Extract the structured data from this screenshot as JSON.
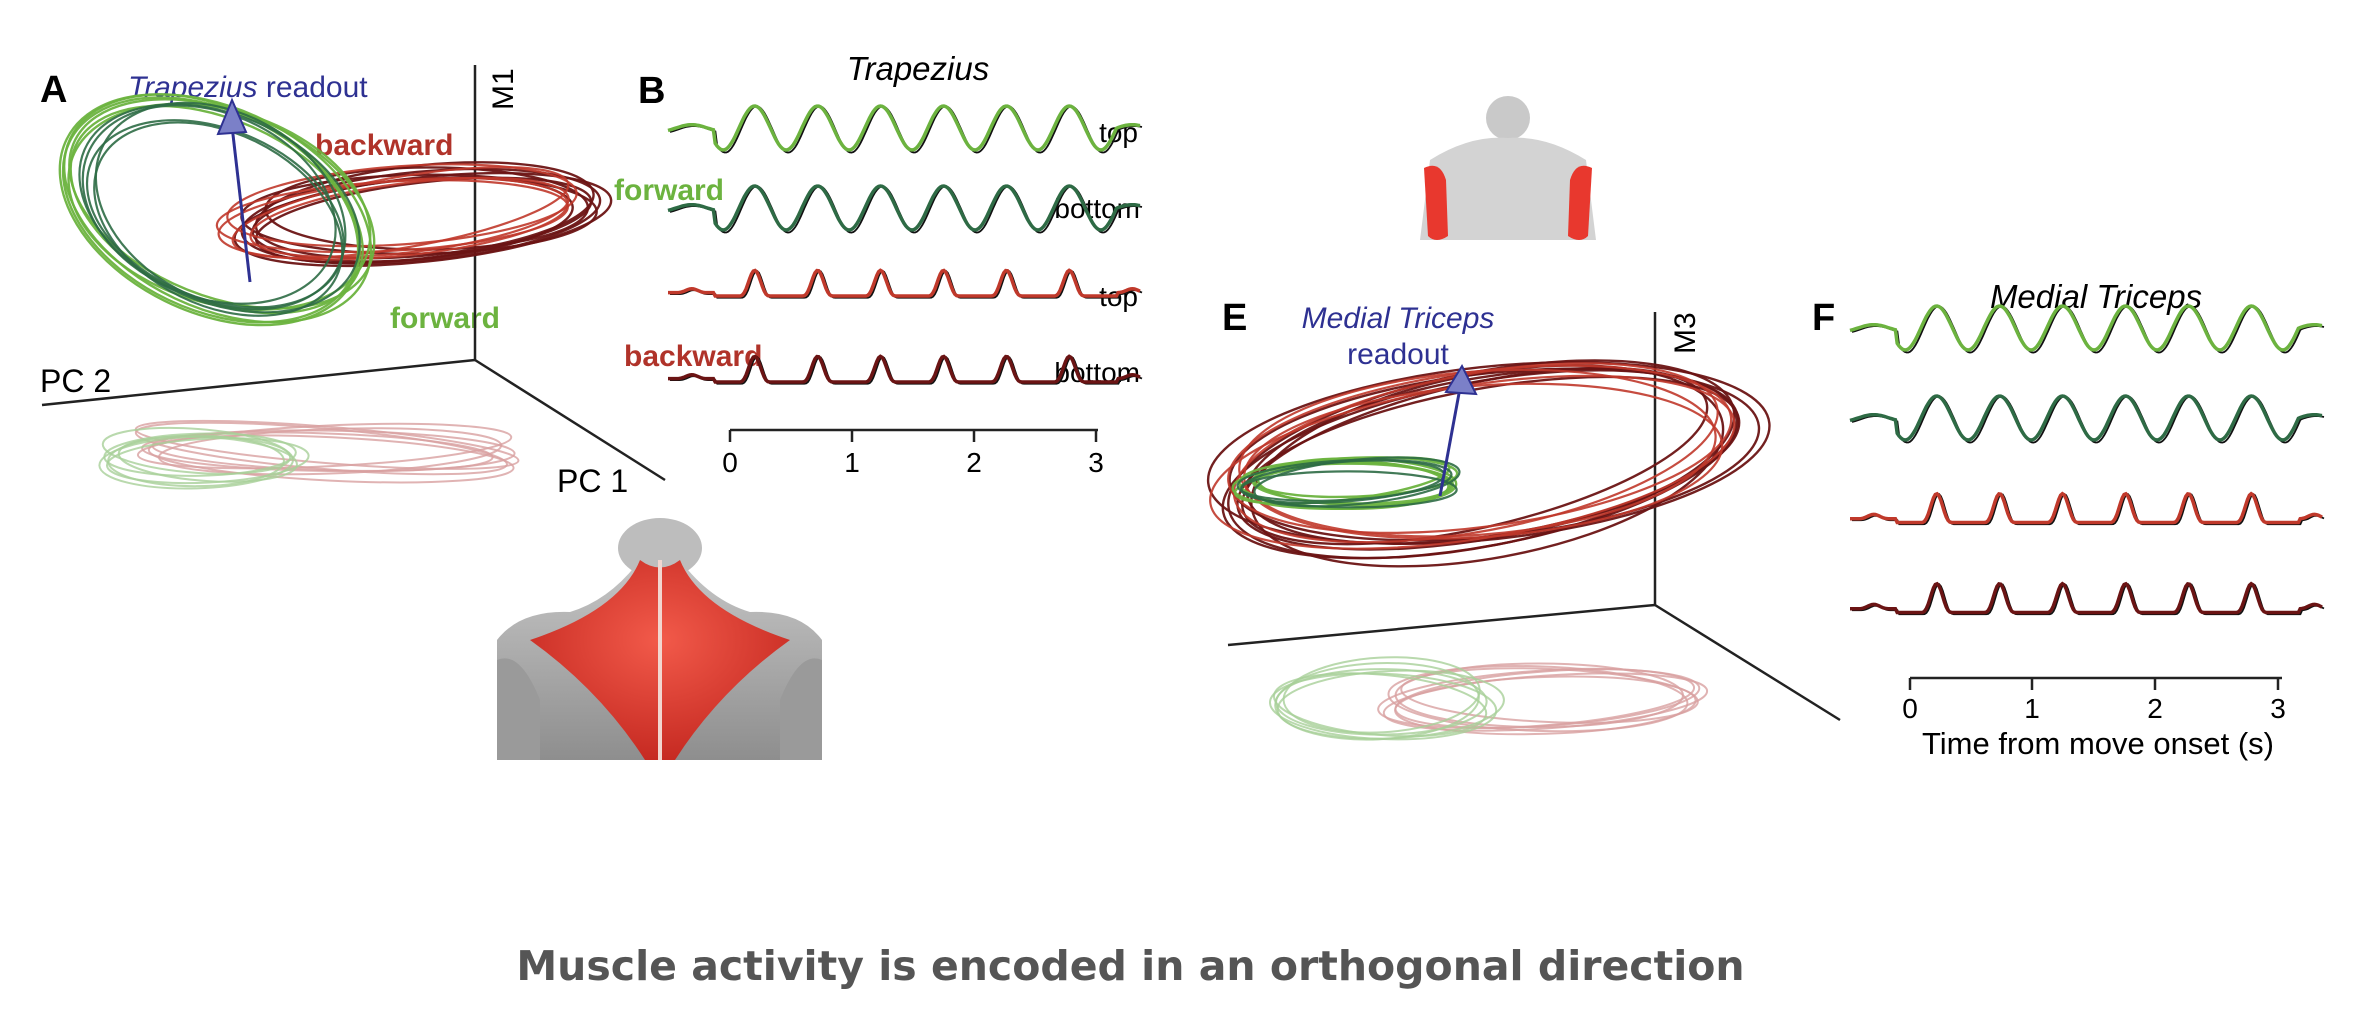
{
  "figure": {
    "panel_letters": {
      "A": "A",
      "B": "B",
      "E": "E",
      "F": "F"
    },
    "panel_A": {
      "readout_italic": "Trapezius",
      "readout_rest": " readout",
      "axis_vertical": "M1",
      "axis_left": "PC 2",
      "axis_right": "PC 1",
      "label_backward": "backward",
      "label_forward": "forward"
    },
    "panel_B": {
      "title": "Trapezius",
      "label_forward": "forward",
      "label_backward": "backward",
      "trace_labels": [
        "top",
        "bottom",
        "top",
        "bottom"
      ],
      "x_ticks": [
        "0",
        "1",
        "2",
        "3"
      ]
    },
    "panel_E": {
      "readout_line1": "Medial Triceps",
      "readout_line2": "readout",
      "axis_vertical": "M3"
    },
    "panel_F": {
      "title": "Medial Triceps",
      "x_ticks": [
        "0",
        "1",
        "2",
        "3"
      ],
      "x_label": "Time from move onset (s)"
    }
  },
  "colors": {
    "light_green": "#6cb33f",
    "dark_green": "#2e6b45",
    "red": "#c0392b",
    "dark_red": "#6b1414",
    "readout_blue": "#2e3192",
    "muscle_red": "#e8382e"
  },
  "caption": "Muscle activity is encoded in an orthogonal direction"
}
